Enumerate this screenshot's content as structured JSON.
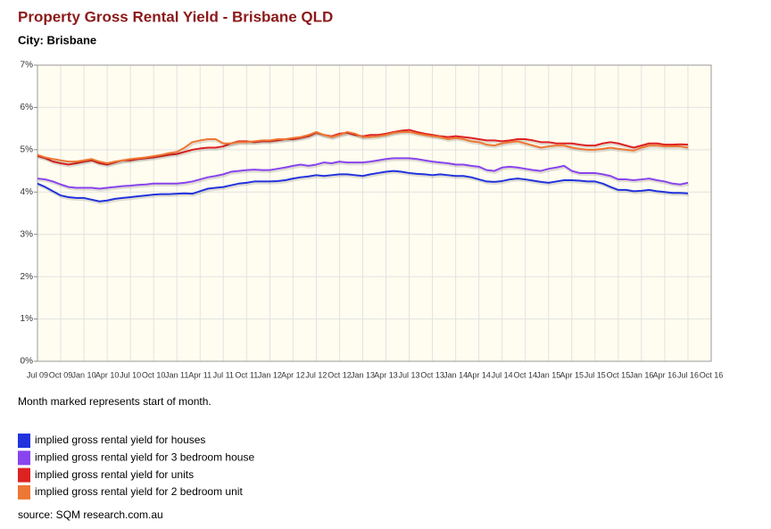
{
  "chart_data": {
    "type": "line",
    "title": "Property Gross Rental Yield - Brisbane QLD",
    "subtitle": "City: Brisbane",
    "note": "Month marked represents start of month.",
    "source": "source: SQM research.com.au",
    "categories": [
      "Jul 09",
      null,
      null,
      "Oct 09",
      null,
      null,
      "Jan 10",
      null,
      null,
      "Apr 10",
      null,
      null,
      "Jul 10",
      null,
      null,
      "Oct 10",
      null,
      null,
      "Jan 11",
      null,
      null,
      "Apr 11",
      null,
      null,
      "Jul 11",
      null,
      null,
      "Oct 11",
      null,
      null,
      "Jan 12",
      null,
      null,
      "Apr 12",
      null,
      null,
      "Jul 12",
      null,
      null,
      "Oct 12",
      null,
      null,
      "Jan 13",
      null,
      null,
      "Apr 13",
      null,
      null,
      "Jul 13",
      null,
      null,
      "Oct 13",
      null,
      null,
      "Jan 14",
      null,
      null,
      "Apr 14",
      null,
      null,
      "Jul 14",
      null,
      null,
      "Oct 14",
      null,
      null,
      "Jan 15",
      null,
      null,
      "Apr 15",
      null,
      null,
      "Jul 15",
      null,
      null,
      "Oct 15",
      null,
      null,
      "Jan 16",
      null,
      null,
      "Apr 16",
      null,
      null,
      "Jul 16",
      null,
      null,
      "Oct 16"
    ],
    "ylim": [
      0,
      7
    ],
    "yticks": [
      {
        "value": 0,
        "label": "0%"
      },
      {
        "value": 1,
        "label": "1%"
      },
      {
        "value": 2,
        "label": "2%"
      },
      {
        "value": 3,
        "label": "3%"
      },
      {
        "value": 4,
        "label": "4%"
      },
      {
        "value": 5,
        "label": "5%"
      },
      {
        "value": 6,
        "label": "6%"
      },
      {
        "value": 7,
        "label": "7%"
      }
    ],
    "grid": true,
    "series": [
      {
        "name": "implied gross rental yield for houses",
        "color": "#2233dd",
        "values": [
          4.2,
          4.12,
          4.02,
          3.92,
          3.88,
          3.86,
          3.86,
          3.82,
          3.78,
          3.8,
          3.84,
          3.86,
          3.88,
          3.9,
          3.92,
          3.94,
          3.95,
          3.95,
          3.96,
          3.97,
          3.96,
          4.02,
          4.08,
          4.1,
          4.12,
          4.16,
          4.2,
          4.22,
          4.25,
          4.25,
          4.25,
          4.26,
          4.28,
          4.32,
          4.35,
          4.37,
          4.4,
          4.38,
          4.4,
          4.42,
          4.42,
          4.4,
          4.38,
          4.42,
          4.45,
          4.48,
          4.5,
          4.48,
          4.45,
          4.43,
          4.42,
          4.4,
          4.42,
          4.4,
          4.38,
          4.38,
          4.35,
          4.3,
          4.25,
          4.24,
          4.26,
          4.3,
          4.32,
          4.3,
          4.27,
          4.24,
          4.22,
          4.25,
          4.28,
          4.28,
          4.27,
          4.25,
          4.25,
          4.2,
          4.12,
          4.05,
          4.05,
          4.02,
          4.03,
          4.05,
          4.02,
          4.0,
          3.98,
          3.98,
          3.97,
          null,
          null,
          null
        ]
      },
      {
        "name": "implied gross rental yield for 3 bedroom house",
        "color": "#8844ee",
        "values": [
          4.32,
          4.3,
          4.25,
          4.18,
          4.12,
          4.1,
          4.1,
          4.1,
          4.08,
          4.1,
          4.12,
          4.14,
          4.15,
          4.17,
          4.18,
          4.2,
          4.2,
          4.2,
          4.2,
          4.22,
          4.25,
          4.3,
          4.35,
          4.38,
          4.42,
          4.48,
          4.5,
          4.52,
          4.53,
          4.52,
          4.52,
          4.55,
          4.58,
          4.62,
          4.65,
          4.62,
          4.65,
          4.7,
          4.68,
          4.72,
          4.7,
          4.7,
          4.7,
          4.72,
          4.75,
          4.78,
          4.8,
          4.8,
          4.8,
          4.78,
          4.75,
          4.72,
          4.7,
          4.68,
          4.65,
          4.65,
          4.62,
          4.6,
          4.52,
          4.5,
          4.58,
          4.6,
          4.58,
          4.55,
          4.52,
          4.5,
          4.55,
          4.58,
          4.62,
          4.5,
          4.45,
          4.45,
          4.45,
          4.42,
          4.38,
          4.3,
          4.3,
          4.28,
          4.3,
          4.32,
          4.28,
          4.25,
          4.2,
          4.18,
          4.22,
          null,
          null,
          null
        ]
      },
      {
        "name": "implied gross rental yield for units",
        "color": "#dd2222",
        "values": [
          4.85,
          4.8,
          4.72,
          4.68,
          4.65,
          4.68,
          4.72,
          4.75,
          4.68,
          4.65,
          4.7,
          4.75,
          4.75,
          4.78,
          4.8,
          4.82,
          4.85,
          4.88,
          4.9,
          4.95,
          5.0,
          5.03,
          5.05,
          5.05,
          5.08,
          5.15,
          5.2,
          5.2,
          5.18,
          5.2,
          5.2,
          5.22,
          5.25,
          5.25,
          5.28,
          5.32,
          5.4,
          5.35,
          5.32,
          5.38,
          5.4,
          5.35,
          5.32,
          5.35,
          5.35,
          5.38,
          5.42,
          5.45,
          5.47,
          5.42,
          5.38,
          5.35,
          5.32,
          5.3,
          5.32,
          5.3,
          5.28,
          5.25,
          5.22,
          5.22,
          5.2,
          5.22,
          5.25,
          5.25,
          5.22,
          5.18,
          5.18,
          5.15,
          5.15,
          5.15,
          5.12,
          5.1,
          5.1,
          5.15,
          5.18,
          5.15,
          5.1,
          5.05,
          5.1,
          5.15,
          5.15,
          5.12,
          5.12,
          5.13,
          5.12,
          null,
          null,
          null
        ]
      },
      {
        "name": "implied gross rental yield for 2 bedroom unit",
        "color": "#ee7733",
        "values": [
          4.88,
          4.82,
          4.78,
          4.75,
          4.72,
          4.72,
          4.75,
          4.78,
          4.72,
          4.68,
          4.72,
          4.75,
          4.78,
          4.8,
          4.82,
          4.85,
          4.88,
          4.92,
          4.95,
          5.05,
          5.18,
          5.22,
          5.25,
          5.25,
          5.15,
          5.15,
          5.18,
          5.18,
          5.2,
          5.22,
          5.22,
          5.25,
          5.25,
          5.28,
          5.3,
          5.35,
          5.42,
          5.35,
          5.3,
          5.35,
          5.42,
          5.38,
          5.3,
          5.3,
          5.32,
          5.35,
          5.4,
          5.42,
          5.42,
          5.38,
          5.35,
          5.32,
          5.3,
          5.25,
          5.28,
          5.25,
          5.2,
          5.18,
          5.12,
          5.1,
          5.15,
          5.18,
          5.2,
          5.15,
          5.1,
          5.05,
          5.08,
          5.1,
          5.1,
          5.05,
          5.02,
          5.0,
          5.0,
          5.02,
          5.05,
          5.02,
          5.0,
          4.98,
          5.05,
          5.1,
          5.1,
          5.08,
          5.08,
          5.08,
          5.05,
          null,
          null,
          null
        ]
      }
    ]
  }
}
